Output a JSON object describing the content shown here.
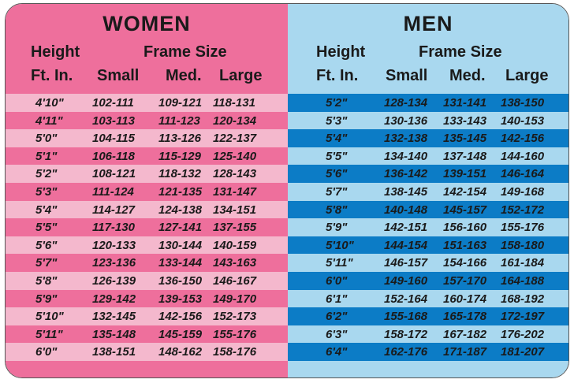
{
  "women": {
    "title": "WOMEN",
    "headers": {
      "height": "Height",
      "ft_in": "Ft. In.",
      "frame_size": "Frame Size",
      "small": "Small",
      "med": "Med.",
      "large": "Large"
    },
    "rows": [
      {
        "height": "4'10\"",
        "small": "102-111",
        "med": "109-121",
        "large": "118-131"
      },
      {
        "height": "4'11\"",
        "small": "103-113",
        "med": "111-123",
        "large": "120-134"
      },
      {
        "height": "5'0\"",
        "small": "104-115",
        "med": "113-126",
        "large": "122-137"
      },
      {
        "height": "5'1\"",
        "small": "106-118",
        "med": "115-129",
        "large": "125-140"
      },
      {
        "height": "5'2\"",
        "small": "108-121",
        "med": "118-132",
        "large": "128-143"
      },
      {
        "height": "5'3\"",
        "small": "111-124",
        "med": "121-135",
        "large": "131-147"
      },
      {
        "height": "5'4\"",
        "small": "114-127",
        "med": "124-138",
        "large": "134-151"
      },
      {
        "height": "5'5\"",
        "small": "117-130",
        "med": "127-141",
        "large": "137-155"
      },
      {
        "height": "5'6\"",
        "small": "120-133",
        "med": "130-144",
        "large": "140-159"
      },
      {
        "height": "5'7\"",
        "small": "123-136",
        "med": "133-144",
        "large": "143-163"
      },
      {
        "height": "5'8\"",
        "small": "126-139",
        "med": "136-150",
        "large": "146-167"
      },
      {
        "height": "5'9\"",
        "small": "129-142",
        "med": "139-153",
        "large": "149-170"
      },
      {
        "height": "5'10\"",
        "small": "132-145",
        "med": "142-156",
        "large": "152-173"
      },
      {
        "height": "5'11\"",
        "small": "135-148",
        "med": "145-159",
        "large": "155-176"
      },
      {
        "height": "6'0\"",
        "small": "138-151",
        "med": "148-162",
        "large": "158-176"
      }
    ]
  },
  "men": {
    "title": "MEN",
    "headers": {
      "height": "Height",
      "ft_in": "Ft. In.",
      "frame_size": "Frame Size",
      "small": "Small",
      "med": "Med.",
      "large": "Large"
    },
    "rows": [
      {
        "height": "5'2\"",
        "small": "128-134",
        "med": "131-141",
        "large": "138-150"
      },
      {
        "height": "5'3\"",
        "small": "130-136",
        "med": "133-143",
        "large": "140-153"
      },
      {
        "height": "5'4\"",
        "small": "132-138",
        "med": "135-145",
        "large": "142-156"
      },
      {
        "height": "5'5\"",
        "small": "134-140",
        "med": "137-148",
        "large": "144-160"
      },
      {
        "height": "5'6\"",
        "small": "136-142",
        "med": "139-151",
        "large": "146-164"
      },
      {
        "height": "5'7\"",
        "small": "138-145",
        "med": "142-154",
        "large": "149-168"
      },
      {
        "height": "5'8\"",
        "small": "140-148",
        "med": "145-157",
        "large": "152-172"
      },
      {
        "height": "5'9\"",
        "small": "142-151",
        "med": "156-160",
        "large": "155-176"
      },
      {
        "height": "5'10\"",
        "small": "144-154",
        "med": "151-163",
        "large": "158-180"
      },
      {
        "height": "5'11\"",
        "small": "146-157",
        "med": "154-166",
        "large": "161-184"
      },
      {
        "height": "6'0\"",
        "small": "149-160",
        "med": "157-170",
        "large": "164-188"
      },
      {
        "height": "6'1\"",
        "small": "152-164",
        "med": "160-174",
        "large": "168-192"
      },
      {
        "height": "6'2\"",
        "small": "155-168",
        "med": "165-178",
        "large": "172-197"
      },
      {
        "height": "6'3\"",
        "small": "158-172",
        "med": "167-182",
        "large": "176-202"
      },
      {
        "height": "6'4\"",
        "small": "162-176",
        "med": "171-187",
        "large": "181-207"
      }
    ]
  },
  "colors": {
    "women_bg": "#ee6f9c",
    "women_stripe": "#f4b8cd",
    "men_bg": "#a9d8ef",
    "men_stripe": "#0c7cc6"
  }
}
